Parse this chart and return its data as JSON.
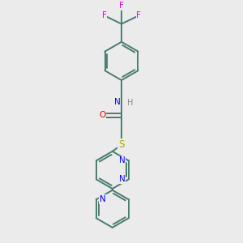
{
  "background_color": "#ebebeb",
  "bond_color": "#4a7c6f",
  "N_color": "#0000ee",
  "O_color": "#ee0000",
  "S_color": "#b8a000",
  "F_color": "#cc00cc",
  "H_color": "#888888",
  "line_width": 1.4,
  "figsize": [
    3.0,
    3.0
  ],
  "dpi": 100,
  "xlim": [
    0,
    10
  ],
  "ylim": [
    0,
    10
  ]
}
